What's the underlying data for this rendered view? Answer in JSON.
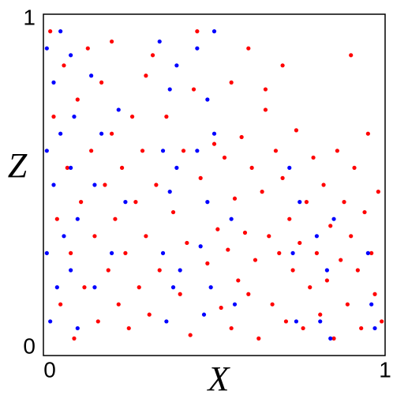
{
  "chart_data": {
    "type": "scatter",
    "xlabel": "X",
    "ylabel": "Z",
    "xlim": [
      0,
      1
    ],
    "ylim": [
      0,
      1
    ],
    "xticks": [
      0,
      1
    ],
    "yticks": [
      0,
      1
    ],
    "series": [
      {
        "color": "#ff0000",
        "x": [
          0.02,
          0.03,
          0.04,
          0.05,
          0.06,
          0.07,
          0.08,
          0.09,
          0.1,
          0.11,
          0.12,
          0.13,
          0.14,
          0.15,
          0.16,
          0.17,
          0.18,
          0.19,
          0.2,
          0.21,
          0.22,
          0.23,
          0.24,
          0.25,
          0.26,
          0.27,
          0.28,
          0.29,
          0.3,
          0.31,
          0.32,
          0.33,
          0.34,
          0.36,
          0.38,
          0.4,
          0.41,
          0.42,
          0.43,
          0.44,
          0.46,
          0.48,
          0.5,
          0.51,
          0.52,
          0.53,
          0.54,
          0.55,
          0.56,
          0.57,
          0.58,
          0.59,
          0.6,
          0.61,
          0.62,
          0.63,
          0.64,
          0.65,
          0.66,
          0.67,
          0.68,
          0.69,
          0.7,
          0.71,
          0.72,
          0.73,
          0.74,
          0.75,
          0.76,
          0.77,
          0.78,
          0.79,
          0.8,
          0.81,
          0.82,
          0.83,
          0.84,
          0.85,
          0.86,
          0.87,
          0.88,
          0.89,
          0.9,
          0.91,
          0.92,
          0.93,
          0.94,
          0.95,
          0.96,
          0.97,
          0.98,
          0.99,
          0.6,
          0.7,
          0.45,
          0.55,
          0.65,
          0.9,
          0.2,
          0.3
        ],
        "values": [
          0.95,
          0.7,
          0.4,
          0.15,
          0.85,
          0.55,
          0.3,
          0.05,
          0.75,
          0.45,
          0.2,
          0.9,
          0.6,
          0.35,
          0.1,
          0.8,
          0.5,
          0.25,
          0.65,
          0.4,
          0.15,
          0.55,
          0.3,
          0.08,
          0.7,
          0.45,
          0.2,
          0.6,
          0.35,
          0.12,
          0.88,
          0.5,
          0.25,
          0.7,
          0.42,
          0.18,
          0.6,
          0.33,
          0.06,
          0.78,
          0.52,
          0.27,
          0.62,
          0.37,
          0.14,
          0.58,
          0.31,
          0.08,
          0.46,
          0.22,
          0.64,
          0.36,
          0.18,
          0.55,
          0.28,
          0.05,
          0.48,
          0.72,
          0.35,
          0.15,
          0.6,
          0.3,
          0.52,
          0.1,
          0.4,
          0.25,
          0.66,
          0.33,
          0.08,
          0.45,
          0.2,
          0.58,
          0.3,
          0.12,
          0.5,
          0.22,
          0.38,
          0.05,
          0.6,
          0.28,
          0.45,
          0.15,
          0.35,
          0.55,
          0.25,
          0.08,
          0.42,
          0.65,
          0.3,
          0.18,
          0.48,
          0.1,
          0.9,
          0.85,
          0.95,
          0.8,
          0.78,
          0.88,
          0.92,
          0.82
        ]
      },
      {
        "color": "#0000ff",
        "x": [
          0.01,
          0.01,
          0.01,
          0.02,
          0.03,
          0.03,
          0.04,
          0.05,
          0.05,
          0.06,
          0.08,
          0.08,
          0.08,
          0.09,
          0.1,
          0.1,
          0.14,
          0.15,
          0.15,
          0.17,
          0.2,
          0.22,
          0.24,
          0.34,
          0.35,
          0.35,
          0.36,
          0.37,
          0.37,
          0.38,
          0.39,
          0.39,
          0.4,
          0.45,
          0.45,
          0.46,
          0.47,
          0.48,
          0.48,
          0.49,
          0.5,
          0.5,
          0.55,
          0.56,
          0.72,
          0.73,
          0.74,
          0.75,
          0.8,
          0.81,
          0.83,
          0.84,
          0.85,
          0.95,
          0.96,
          0.97
        ],
        "values": [
          0.9,
          0.6,
          0.3,
          0.1,
          0.8,
          0.5,
          0.2,
          0.95,
          0.65,
          0.35,
          0.88,
          0.55,
          0.25,
          0.7,
          0.4,
          0.08,
          0.82,
          0.5,
          0.2,
          0.65,
          0.3,
          0.72,
          0.45,
          0.92,
          0.6,
          0.3,
          0.1,
          0.78,
          0.48,
          0.2,
          0.85,
          0.55,
          0.25,
          0.9,
          0.6,
          0.32,
          0.12,
          0.75,
          0.45,
          0.2,
          0.95,
          0.65,
          0.4,
          0.15,
          0.55,
          0.3,
          0.1,
          0.45,
          0.35,
          0.1,
          0.25,
          0.05,
          0.4,
          0.3,
          0.15,
          0.08
        ]
      }
    ]
  }
}
